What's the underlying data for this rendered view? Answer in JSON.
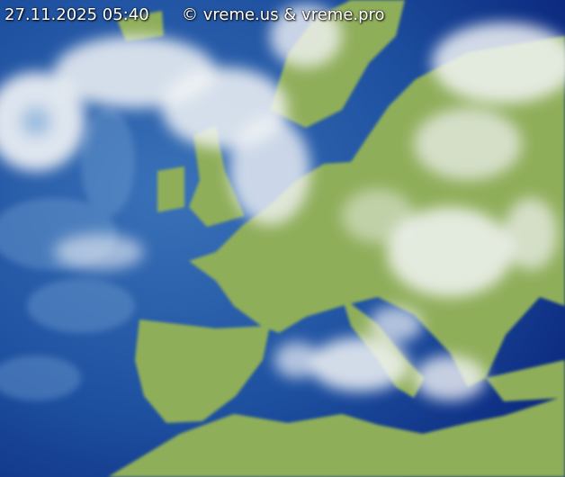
{
  "timestamp": "27.11.2025 05:40",
  "copyright": "© vreme.us & vreme.pro",
  "colors": {
    "ocean": "#1a4d9e",
    "land": "#8fae5a",
    "cloud": "#f2f4f6"
  }
}
